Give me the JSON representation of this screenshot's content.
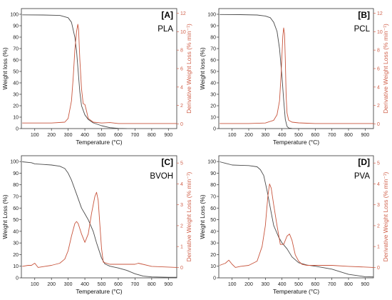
{
  "chart_data": [
    {
      "type": "line",
      "panel_label": "[A]",
      "material": "PLA",
      "xlabel": "Temperature (°C)",
      "ylabel": "Weight loss (%)",
      "y2label": "Derivative Weight Loss (% min⁻¹)",
      "xlim": [
        20,
        950
      ],
      "ylim": [
        0,
        105
      ],
      "y2lim": [
        -0.5,
        12.5
      ],
      "xticks": [
        100,
        200,
        300,
        400,
        500,
        600,
        700,
        800,
        900
      ],
      "yticks": [
        0,
        10,
        20,
        30,
        40,
        50,
        60,
        70,
        80,
        90,
        100
      ],
      "y2ticks": [
        0,
        2,
        4,
        6,
        8,
        10,
        12
      ],
      "colors": {
        "weight": "#4a4a4a",
        "derivative": "#c8553d"
      },
      "series": [
        {
          "axis": "left",
          "x": [
            25,
            150,
            250,
            300,
            320,
            340,
            350,
            360,
            370,
            380,
            400,
            420,
            450,
            500,
            550,
            600,
            650
          ],
          "y": [
            99.5,
            99.4,
            99.0,
            97.0,
            93.0,
            80.0,
            68.0,
            50.0,
            32.0,
            20.0,
            12.0,
            8.0,
            5.0,
            2.5,
            0.8,
            0.2,
            0.0
          ]
        },
        {
          "axis": "right",
          "x": [
            25,
            100,
            200,
            280,
            300,
            320,
            330,
            340,
            350,
            358,
            362,
            370,
            380,
            390,
            400,
            410,
            420,
            450,
            500,
            550,
            600,
            700,
            950
          ],
          "y": [
            0.1,
            0.1,
            0.1,
            0.2,
            0.6,
            2.5,
            5.0,
            8.0,
            10.0,
            10.8,
            10.3,
            7.0,
            3.8,
            2.2,
            2.1,
            1.4,
            0.6,
            0.2,
            0.1,
            0.15,
            0.05,
            0.05,
            0.05
          ]
        }
      ]
    },
    {
      "type": "line",
      "panel_label": "[B]",
      "material": "PCL",
      "xlabel": "Temperature (°C)",
      "ylabel": "Weight loss (%)",
      "y2label": "Derivative Weight Loss (% min⁻¹)",
      "xlim": [
        20,
        950
      ],
      "ylim": [
        0,
        105
      ],
      "y2lim": [
        -0.5,
        12.5
      ],
      "xticks": [
        100,
        200,
        300,
        400,
        500,
        600,
        700,
        800,
        900
      ],
      "yticks": [
        0,
        10,
        20,
        30,
        40,
        50,
        60,
        70,
        80,
        90,
        100
      ],
      "y2ticks": [
        0,
        2,
        4,
        6,
        8,
        10,
        12
      ],
      "colors": {
        "weight": "#4a4a4a",
        "derivative": "#c8553d"
      },
      "series": [
        {
          "axis": "left",
          "x": [
            25,
            150,
            250,
            300,
            330,
            350,
            370,
            385,
            400,
            410,
            420,
            430,
            440,
            460,
            500,
            950
          ],
          "y": [
            99.8,
            99.7,
            99.4,
            98.5,
            97.0,
            93.0,
            85.0,
            70.0,
            45.0,
            25.0,
            8.0,
            2.0,
            0.5,
            0.1,
            0.0,
            0.0
          ]
        },
        {
          "axis": "right",
          "x": [
            25,
            200,
            300,
            350,
            370,
            385,
            395,
            405,
            410,
            415,
            420,
            425,
            430,
            440,
            460,
            500,
            550,
            600,
            950
          ],
          "y": [
            0.05,
            0.05,
            0.1,
            0.4,
            1.0,
            2.5,
            5.5,
            9.5,
            10.4,
            9.8,
            7.0,
            3.0,
            1.2,
            0.4,
            0.2,
            0.12,
            0.08,
            0.05,
            0.05
          ]
        }
      ]
    },
    {
      "type": "line",
      "panel_label": "[C]",
      "material": "BVOH",
      "xlabel": "Temperature (°C)",
      "ylabel": "Weight Loss (%)",
      "y2label": "Derivative Weight Loss (% min⁻¹)",
      "xlim": [
        20,
        950
      ],
      "ylim": [
        0,
        105
      ],
      "y2lim": [
        -0.5,
        5.35
      ],
      "xticks": [
        100,
        200,
        300,
        400,
        500,
        600,
        700,
        800,
        900
      ],
      "yticks": [
        0,
        10,
        20,
        30,
        40,
        50,
        60,
        70,
        80,
        90,
        100
      ],
      "y2ticks": [
        0,
        1,
        2,
        3,
        4,
        5
      ],
      "colors": {
        "weight": "#4a4a4a",
        "derivative": "#c8553d"
      },
      "series": [
        {
          "axis": "left",
          "x": [
            25,
            80,
            100,
            150,
            200,
            250,
            280,
            300,
            320,
            350,
            380,
            400,
            420,
            450,
            470,
            500,
            520,
            550,
            600,
            650,
            700,
            750,
            800,
            900,
            950
          ],
          "y": [
            99.8,
            99.0,
            98.0,
            97.5,
            97.0,
            96.0,
            94.0,
            90.0,
            84.0,
            72.0,
            60.0,
            55.0,
            50.0,
            40.0,
            30.0,
            17.0,
            12.0,
            10.0,
            8.5,
            6.5,
            3.5,
            1.5,
            0.8,
            0.5,
            0.5
          ]
        },
        {
          "axis": "right",
          "x": [
            25,
            60,
            80,
            100,
            120,
            160,
            200,
            250,
            280,
            300,
            320,
            340,
            350,
            360,
            380,
            400,
            420,
            440,
            460,
            470,
            480,
            490,
            500,
            510,
            550,
            600,
            700,
            720,
            800,
            950
          ],
          "y": [
            0.05,
            0.1,
            0.1,
            0.2,
            0.0,
            0.05,
            0.1,
            0.2,
            0.4,
            0.8,
            1.5,
            2.1,
            2.2,
            2.1,
            1.6,
            1.2,
            1.6,
            2.6,
            3.4,
            3.6,
            3.2,
            2.0,
            0.9,
            0.25,
            0.15,
            0.15,
            0.15,
            0.2,
            0.05,
            0.0
          ]
        }
      ]
    },
    {
      "type": "line",
      "panel_label": "[D]",
      "material": "PVA",
      "xlabel": "Temperature (°C)",
      "ylabel": "Weight Loss (%)",
      "y2label": "Derivative Weight Loss (% min⁻¹)",
      "xlim": [
        20,
        950
      ],
      "ylim": [
        0,
        105
      ],
      "y2lim": [
        -0.5,
        5.35
      ],
      "xticks": [
        100,
        200,
        300,
        400,
        500,
        600,
        700,
        800,
        900
      ],
      "yticks": [
        0,
        10,
        20,
        30,
        40,
        50,
        60,
        70,
        80,
        90,
        100
      ],
      "y2ticks": [
        0,
        1,
        2,
        3,
        4,
        5
      ],
      "colors": {
        "weight": "#4a4a4a",
        "derivative": "#c8553d"
      },
      "series": [
        {
          "axis": "left",
          "x": [
            25,
            60,
            100,
            150,
            200,
            250,
            270,
            290,
            310,
            330,
            350,
            380,
            400,
            430,
            460,
            500,
            550,
            600,
            700,
            800,
            900,
            950
          ],
          "y": [
            99.8,
            98.5,
            97.0,
            96.8,
            96.5,
            95.5,
            93.0,
            88.0,
            75.0,
            60.0,
            45.0,
            35.0,
            30.0,
            25.0,
            18.0,
            13.0,
            11.0,
            10.0,
            7.5,
            3.0,
            1.0,
            0.8
          ]
        },
        {
          "axis": "right",
          "x": [
            25,
            60,
            80,
            100,
            120,
            150,
            200,
            250,
            280,
            300,
            315,
            325,
            335,
            350,
            370,
            390,
            410,
            430,
            445,
            460,
            480,
            500,
            520,
            550,
            700,
            800,
            950
          ],
          "y": [
            0.1,
            0.2,
            0.35,
            0.15,
            0.0,
            0.05,
            0.1,
            0.3,
            1.0,
            2.0,
            3.4,
            4.0,
            3.8,
            3.0,
            2.0,
            1.1,
            1.1,
            1.5,
            1.6,
            1.3,
            0.6,
            0.3,
            0.15,
            0.1,
            0.1,
            0.05,
            0.0
          ]
        }
      ]
    }
  ]
}
